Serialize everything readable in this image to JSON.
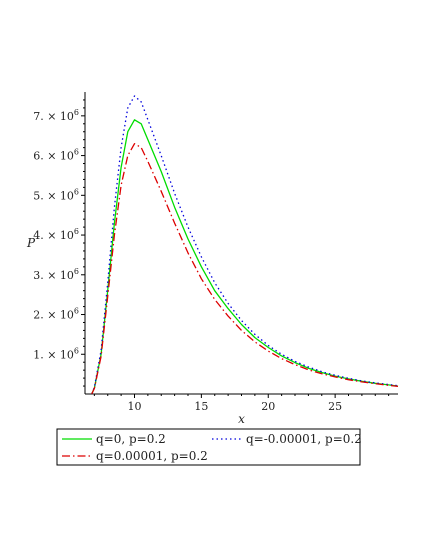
{
  "chart_data": {
    "type": "line",
    "xlabel": "x",
    "ylabel": "P",
    "xlim": [
      6.3,
      29.7
    ],
    "ylim": [
      0,
      7600000
    ],
    "x_ticks": [
      {
        "value": 10,
        "label": "10"
      },
      {
        "value": 15,
        "label": "15"
      },
      {
        "value": 20,
        "label": "20"
      },
      {
        "value": 25,
        "label": "25"
      }
    ],
    "y_ticks": [
      {
        "value": 1000000,
        "mantissa": "1.",
        "exp": "6"
      },
      {
        "value": 2000000,
        "mantissa": "2.",
        "exp": "6"
      },
      {
        "value": 3000000,
        "mantissa": "3.",
        "exp": "6"
      },
      {
        "value": 4000000,
        "mantissa": "4.",
        "exp": "6"
      },
      {
        "value": 5000000,
        "mantissa": "5.",
        "exp": "6"
      },
      {
        "value": 6000000,
        "mantissa": "6.",
        "exp": "6"
      },
      {
        "value": 7000000,
        "mantissa": "7.",
        "exp": "6"
      }
    ],
    "y_tick_format": {
      "times": "×",
      "base": "10"
    },
    "legend_placement": "bottom",
    "series": [
      {
        "name": "q=0, p=0.2",
        "color": "#00dd00",
        "dash": "solid",
        "points": [
          [
            6.8,
            0
          ],
          [
            7.0,
            150000
          ],
          [
            7.5,
            1000000
          ],
          [
            8.0,
            2600000
          ],
          [
            8.5,
            4300000
          ],
          [
            9.0,
            5700000
          ],
          [
            9.5,
            6600000
          ],
          [
            10.0,
            6900000
          ],
          [
            10.5,
            6800000
          ],
          [
            11.0,
            6400000
          ],
          [
            12.0,
            5600000
          ],
          [
            13.0,
            4700000
          ],
          [
            14.0,
            3900000
          ],
          [
            15.0,
            3200000
          ],
          [
            16.0,
            2600000
          ],
          [
            17.0,
            2150000
          ],
          [
            18.0,
            1750000
          ],
          [
            19.0,
            1420000
          ],
          [
            20.0,
            1170000
          ],
          [
            21.0,
            960000
          ],
          [
            22.0,
            790000
          ],
          [
            23.0,
            650000
          ],
          [
            24.0,
            540000
          ],
          [
            25.0,
            450000
          ],
          [
            26.0,
            380000
          ],
          [
            27.0,
            320000
          ],
          [
            28.0,
            270000
          ],
          [
            29.0,
            230000
          ],
          [
            29.7,
            200000
          ]
        ]
      },
      {
        "name": "q=-0.00001, p=0.2",
        "color": "#0000dd",
        "dash": "dotted",
        "points": [
          [
            6.8,
            0
          ],
          [
            7.0,
            170000
          ],
          [
            7.5,
            1100000
          ],
          [
            8.0,
            2800000
          ],
          [
            8.5,
            4700000
          ],
          [
            9.0,
            6200000
          ],
          [
            9.5,
            7200000
          ],
          [
            10.0,
            7500000
          ],
          [
            10.5,
            7350000
          ],
          [
            11.0,
            6900000
          ],
          [
            12.0,
            6000000
          ],
          [
            13.0,
            5050000
          ],
          [
            14.0,
            4200000
          ],
          [
            15.0,
            3450000
          ],
          [
            16.0,
            2800000
          ],
          [
            17.0,
            2280000
          ],
          [
            18.0,
            1850000
          ],
          [
            19.0,
            1500000
          ],
          [
            20.0,
            1220000
          ],
          [
            21.0,
            1000000
          ],
          [
            22.0,
            820000
          ],
          [
            23.0,
            680000
          ],
          [
            24.0,
            560000
          ],
          [
            25.0,
            470000
          ],
          [
            26.0,
            395000
          ],
          [
            27.0,
            330000
          ],
          [
            28.0,
            280000
          ],
          [
            29.0,
            240000
          ],
          [
            29.7,
            210000
          ]
        ]
      },
      {
        "name": "q=0.00001, p=0.2",
        "color": "#dd0000",
        "dash": "dashdot",
        "points": [
          [
            6.8,
            0
          ],
          [
            7.0,
            140000
          ],
          [
            7.5,
            950000
          ],
          [
            8.0,
            2450000
          ],
          [
            8.5,
            4000000
          ],
          [
            9.0,
            5250000
          ],
          [
            9.5,
            6000000
          ],
          [
            10.0,
            6300000
          ],
          [
            10.5,
            6200000
          ],
          [
            11.0,
            5850000
          ],
          [
            12.0,
            5100000
          ],
          [
            13.0,
            4300000
          ],
          [
            14.0,
            3550000
          ],
          [
            15.0,
            2900000
          ],
          [
            16.0,
            2380000
          ],
          [
            17.0,
            1960000
          ],
          [
            18.0,
            1600000
          ],
          [
            19.0,
            1310000
          ],
          [
            20.0,
            1080000
          ],
          [
            21.0,
            890000
          ],
          [
            22.0,
            740000
          ],
          [
            23.0,
            610000
          ],
          [
            24.0,
            510000
          ],
          [
            25.0,
            430000
          ],
          [
            26.0,
            360000
          ],
          [
            27.0,
            305000
          ],
          [
            28.0,
            260000
          ],
          [
            29.0,
            220000
          ],
          [
            29.7,
            190000
          ]
        ]
      }
    ]
  }
}
